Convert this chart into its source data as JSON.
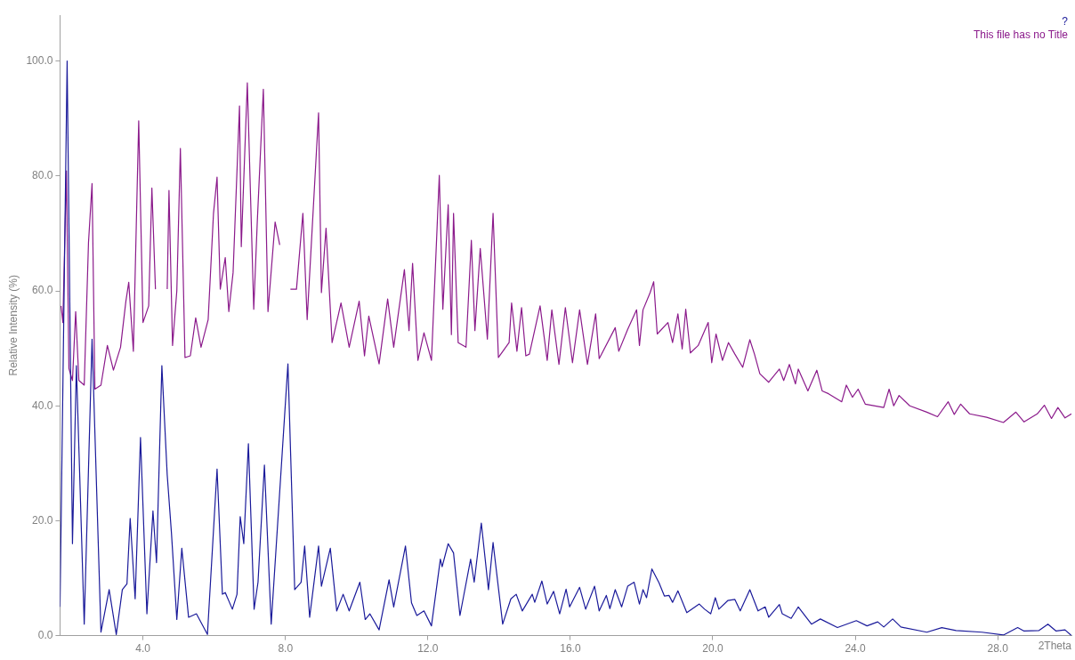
{
  "chart_data": {
    "type": "line",
    "xlabel": "2Theta",
    "ylabel": "Relative Intensity (%)",
    "xlim": [
      1.67,
      30.07
    ],
    "ylim": [
      0,
      108
    ],
    "xticks": [
      {
        "value": 4,
        "label": "4.0"
      },
      {
        "value": 8,
        "label": "8.0"
      },
      {
        "value": 12,
        "label": "12.0"
      },
      {
        "value": 16,
        "label": "16.0"
      },
      {
        "value": 20,
        "label": "20.0"
      },
      {
        "value": 24,
        "label": "24.0"
      },
      {
        "value": 28,
        "label": "28.0"
      }
    ],
    "yticks": [
      {
        "value": 0,
        "label": "0.0"
      },
      {
        "value": 20,
        "label": "20.0"
      },
      {
        "value": 40,
        "label": "40.0"
      },
      {
        "value": 60,
        "label": "60.0"
      },
      {
        "value": 80,
        "label": "80.0"
      },
      {
        "value": 100,
        "label": "100.0"
      }
    ],
    "grid": false,
    "legend": "top right",
    "marker": "none",
    "line_style": "solid",
    "series": [
      {
        "name": "?",
        "color": "#1a1a9a",
        "x": [
          1.67,
          1.87,
          2.02,
          2.13,
          2.35,
          2.57,
          2.82,
          3.05,
          3.25,
          3.42,
          3.55,
          3.64,
          3.78,
          3.93,
          4.11,
          4.28,
          4.38,
          4.53,
          4.68,
          4.8,
          4.95,
          5.09,
          5.28,
          5.5,
          5.81,
          6.08,
          6.23,
          6.31,
          6.51,
          6.64,
          6.73,
          6.83,
          6.96,
          7.12,
          7.23,
          7.41,
          7.6,
          8.07,
          8.26,
          8.44,
          8.54,
          8.68,
          8.93,
          9.01,
          9.26,
          9.44,
          9.62,
          9.79,
          10.09,
          10.24,
          10.37,
          10.63,
          10.91,
          11.04,
          11.37,
          11.54,
          11.69,
          11.89,
          12.1,
          12.35,
          12.4,
          12.57,
          12.72,
          12.9,
          13.2,
          13.3,
          13.5,
          13.7,
          13.83,
          14.1,
          14.33,
          14.48,
          14.65,
          14.93,
          15.0,
          15.2,
          15.35,
          15.53,
          15.7,
          15.88,
          15.98,
          16.26,
          16.43,
          16.68,
          16.81,
          17.01,
          17.11,
          17.26,
          17.44,
          17.61,
          17.79,
          17.94,
          18.04,
          18.14,
          18.29,
          18.49,
          18.64,
          18.77,
          18.87,
          19.02,
          19.27,
          19.62,
          19.77,
          19.94,
          20.07,
          20.17,
          20.42,
          20.62,
          20.77,
          21.04,
          21.27,
          21.47,
          21.57,
          21.87,
          21.95,
          22.2,
          22.4,
          22.77,
          23.02,
          23.5,
          24.03,
          24.33,
          24.63,
          24.8,
          25.05,
          25.28,
          26.01,
          26.43,
          26.83,
          27.56,
          28.16,
          28.56,
          28.74,
          29.16,
          29.41,
          29.64,
          29.89,
          30.07
        ],
        "values": [
          5,
          100,
          16,
          47,
          2,
          51.6,
          0.6,
          8,
          0.2,
          8,
          9,
          20.4,
          6.4,
          34.5,
          3.8,
          21.7,
          12.7,
          47,
          28,
          17.8,
          2.8,
          15.2,
          3.2,
          3.8,
          0.2,
          29,
          7.2,
          7.5,
          4.6,
          7.2,
          20.7,
          16,
          33.4,
          4.6,
          9.3,
          29.7,
          2,
          47.3,
          8,
          9.3,
          15.6,
          3.2,
          15.6,
          8.6,
          15.2,
          4.3,
          7.2,
          4.3,
          9.3,
          2.8,
          3.8,
          1,
          9.7,
          5,
          15.6,
          5.7,
          3.5,
          4.3,
          1.7,
          13.3,
          12,
          16,
          14.4,
          3.5,
          13.3,
          9.3,
          19.6,
          8,
          16.2,
          2,
          6.4,
          7.2,
          4.3,
          7.2,
          5.8,
          9.5,
          5.5,
          7.7,
          3.8,
          8.1,
          5,
          8.4,
          4.6,
          8.6,
          4.3,
          7,
          4.7,
          8,
          5,
          8.6,
          9.3,
          5.5,
          8,
          6.6,
          11.6,
          9.2,
          6.9,
          7,
          5.8,
          7.8,
          4,
          5.5,
          4.6,
          3.8,
          6.6,
          4.6,
          6.1,
          6.3,
          4.3,
          8,
          4.3,
          5,
          3.2,
          5.4,
          3.8,
          3,
          5,
          2,
          2.9,
          1.4,
          2.6,
          1.7,
          2.4,
          1.5,
          2.9,
          1.5,
          0.6,
          1.4,
          0.9,
          0.6,
          0.1,
          1.4,
          0.8,
          0.9,
          2,
          0.8,
          1,
          0
        ]
      },
      {
        "name": "This file has no Title",
        "color": "#8b1a8b",
        "x": [
          1.7,
          1.75,
          1.85,
          1.92,
          2.02,
          2.11,
          2.2,
          2.35,
          2.47,
          2.57,
          2.65,
          2.82,
          3.0,
          3.17,
          3.37,
          3.52,
          3.6,
          3.73,
          3.88,
          4.0,
          4.16,
          4.25,
          4.35,
          4.48,
          4.6,
          4.68,
          4.73,
          4.83,
          4.95,
          5.05,
          5.18,
          5.33,
          5.48,
          5.63,
          5.83,
          5.98,
          6.08,
          6.17,
          6.31,
          6.41,
          6.53,
          6.71,
          6.76,
          6.93,
          7.11,
          7.21,
          7.38,
          7.51,
          7.71,
          7.84,
          7.94,
          8.06,
          8.14,
          8.31,
          8.49,
          8.61,
          8.93,
          9.01,
          9.14,
          9.31,
          9.56,
          9.79,
          10.07,
          10.22,
          10.34,
          10.63,
          10.87,
          11.04,
          11.34,
          11.47,
          11.57,
          11.72,
          11.89,
          12.1,
          12.32,
          12.42,
          12.57,
          12.66,
          12.72,
          12.85,
          13.07,
          13.22,
          13.32,
          13.47,
          13.67,
          13.83,
          13.98,
          14.28,
          14.35,
          14.5,
          14.63,
          14.75,
          14.85,
          15.15,
          15.35,
          15.48,
          15.68,
          15.86,
          16.06,
          16.26,
          16.48,
          16.71,
          16.81,
          17.26,
          17.36,
          17.61,
          17.86,
          17.94,
          18.04,
          18.24,
          18.34,
          18.44,
          18.74,
          18.87,
          19.02,
          19.14,
          19.24,
          19.37,
          19.59,
          19.87,
          19.97,
          20.09,
          20.27,
          20.44,
          20.62,
          20.84,
          21.04,
          21.17,
          21.32,
          21.57,
          21.87,
          21.99,
          22.15,
          22.32,
          22.4,
          22.67,
          22.92,
          23.07,
          23.25,
          23.62,
          23.75,
          23.92,
          24.08,
          24.28,
          24.8,
          24.95,
          25.08,
          25.23,
          25.53,
          26.01,
          26.31,
          26.61,
          26.78,
          26.96,
          27.21,
          27.69,
          28.16,
          28.51,
          28.74,
          29.11,
          29.31,
          29.51,
          29.69,
          29.89,
          30.07
        ],
        "values": [
          57.4,
          54.5,
          80.9,
          46.5,
          44.4,
          56.4,
          44.4,
          43.6,
          68.4,
          78.7,
          42.9,
          43.6,
          50.5,
          46.2,
          50.2,
          58.2,
          61.5,
          49.5,
          89.6,
          54.5,
          57.4,
          77.9,
          60.3,
          null,
          null,
          60.3,
          77.5,
          50.5,
          60,
          84.8,
          48.4,
          48.7,
          55.3,
          50.2,
          55,
          73.5,
          79.8,
          60.3,
          65.8,
          56.4,
          63.2,
          92.2,
          67.7,
          96.2,
          56.8,
          72.1,
          95.1,
          56.4,
          72,
          68,
          null,
          null,
          60.3,
          60.3,
          73.5,
          55,
          91,
          59.7,
          70.9,
          51,
          57.9,
          50.2,
          58.2,
          48.7,
          55.6,
          47.3,
          58.6,
          50.2,
          63.7,
          53.1,
          64.8,
          47.9,
          52.7,
          47.9,
          80.1,
          56.8,
          75,
          52.4,
          73.5,
          51,
          50.2,
          68.8,
          53.1,
          67.4,
          51.6,
          73.5,
          48.4,
          51,
          57.9,
          49.5,
          57.1,
          48.7,
          49,
          57.4,
          47.9,
          56.7,
          47.2,
          57.1,
          47.5,
          56.7,
          47.2,
          56,
          48.2,
          53.6,
          49.5,
          53.3,
          56.7,
          50.5,
          56.7,
          59.7,
          61.6,
          52.5,
          54.5,
          51,
          56,
          49.9,
          56.8,
          49.2,
          50.5,
          54.5,
          47.5,
          52.5,
          47.9,
          51,
          49,
          46.7,
          51.5,
          49,
          45.6,
          44.1,
          46.4,
          44.4,
          47.2,
          43.8,
          46.4,
          42.6,
          46.2,
          42.6,
          42.1,
          40.7,
          43.6,
          41.5,
          42.9,
          40.3,
          39.7,
          42.9,
          40,
          41.8,
          40,
          38.9,
          38.1,
          40.7,
          38.5,
          40.3,
          38.6,
          38,
          37.1,
          38.9,
          37.2,
          38.6,
          40.1,
          37.8,
          39.7,
          37.9,
          38.6
        ]
      }
    ]
  }
}
